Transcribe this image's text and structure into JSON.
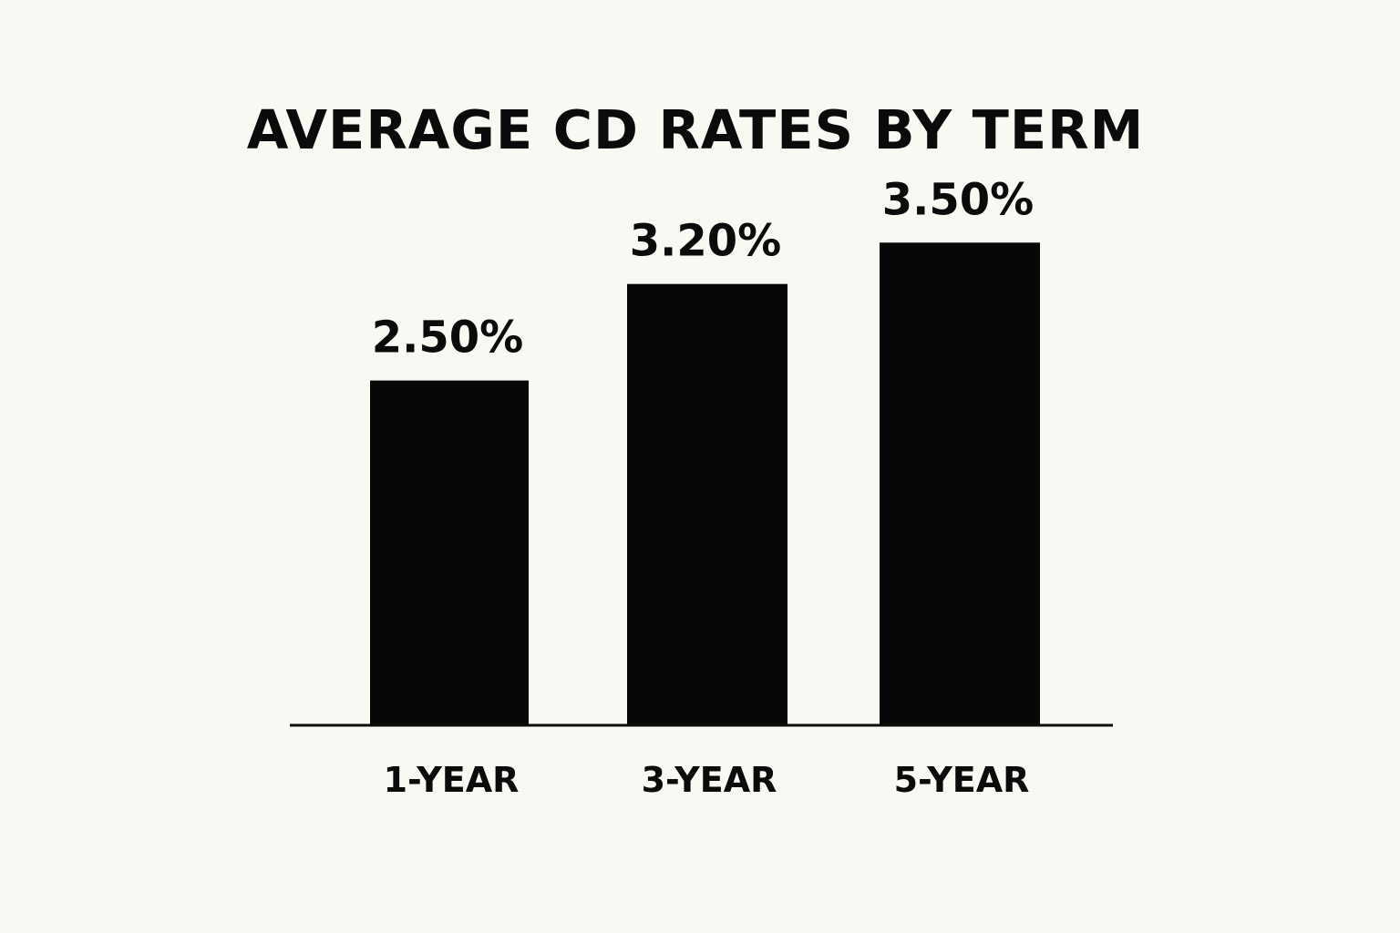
{
  "chart_data": {
    "type": "bar",
    "title": "AVERAGE CD RATES BY TERM",
    "categories": [
      "1-YEAR",
      "3-YEAR",
      "5-YEAR"
    ],
    "values": [
      2.5,
      3.2,
      3.5
    ],
    "value_labels": [
      "2.50%",
      "3.20%",
      "3.50%"
    ],
    "xlabel": "",
    "ylabel": "",
    "ylim": [
      0,
      3.7
    ],
    "grid": false,
    "colors": {
      "bar": "#050806",
      "background": "#f9f8f3",
      "text": "#0a0b0a"
    }
  }
}
